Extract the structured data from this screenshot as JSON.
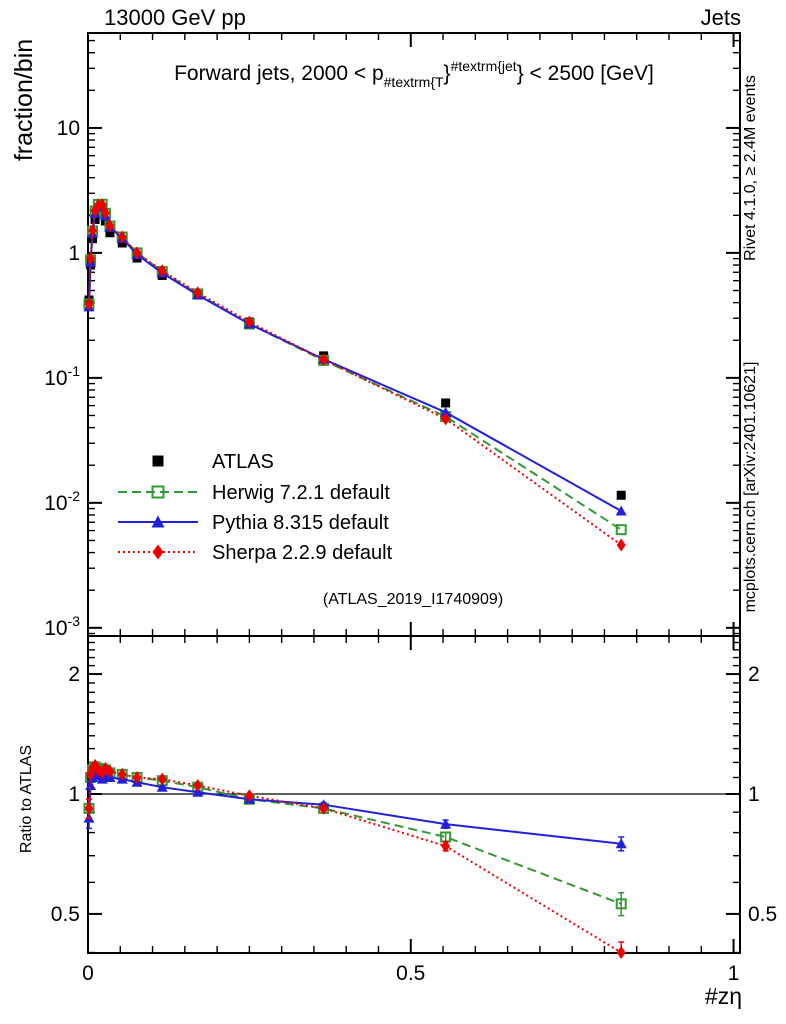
{
  "header": {
    "left": "13000 GeV pp",
    "right": "Jets"
  },
  "main_title": {
    "pre": "Forward jets, 2000 < p",
    "sub": "#textrm{T",
    "mid": "}",
    "sup": "#textrm{jet",
    "post": "} < 2500 [GeV]"
  },
  "side_captions": {
    "top": "Rivet 4.1.0, ≥ 2.4M events",
    "bottom": "mcplots.cern.ch [arXiv:2401.10621]"
  },
  "watermark": "(ATLAS_2019_I1740909)",
  "colors": {
    "atlas": "#000000",
    "herwig": "#339933",
    "pythia": "#2020dd",
    "sherpa": "#ee0000",
    "caption": "#999999",
    "watermark": "#b2b2b2"
  },
  "chart_data": {
    "type": "line",
    "title": "Forward jets, 2000 < pT^jet < 2500 [GeV]",
    "xlabel": "#zη",
    "x": [
      0.0015,
      0.004,
      0.007,
      0.011,
      0.016,
      0.022,
      0.027,
      0.034,
      0.053,
      0.076,
      0.115,
      0.17,
      0.25,
      0.365,
      0.554,
      0.826
    ],
    "series": [
      {
        "name": "ATLAS",
        "color": "#000000",
        "marker": "square-filled",
        "line": "none",
        "values": [
          0.42,
          0.8,
          1.3,
          1.85,
          2.1,
          2.15,
          1.8,
          1.45,
          1.2,
          0.91,
          0.66,
          0.46,
          0.28,
          0.15,
          0.063,
          0.0115
        ]
      },
      {
        "name": "Herwig 7.2.1 default",
        "color": "#339933",
        "marker": "square-open",
        "line": "dashed",
        "values": [
          0.39,
          0.88,
          1.5,
          2.16,
          2.44,
          2.45,
          2.07,
          1.64,
          1.34,
          1.0,
          0.71,
          0.47,
          0.27,
          0.138,
          0.049,
          0.0061
        ],
        "ratios": [
          0.92,
          1.1,
          1.15,
          1.17,
          1.16,
          1.14,
          1.15,
          1.13,
          1.12,
          1.1,
          1.08,
          1.04,
          0.97,
          0.92,
          0.78,
          0.53
        ],
        "ratio_err": [
          0.05,
          0.02,
          0.015,
          0.012,
          0.01,
          0.01,
          0.01,
          0.01,
          0.008,
          0.008,
          0.008,
          0.008,
          0.01,
          0.012,
          0.02,
          0.035
        ]
      },
      {
        "name": "Pythia 8.315 default",
        "color": "#2020dd",
        "marker": "triangle-filled",
        "line": "solid",
        "values": [
          0.37,
          0.84,
          1.43,
          2.07,
          2.33,
          2.34,
          1.98,
          1.6,
          1.31,
          0.97,
          0.69,
          0.46,
          0.27,
          0.141,
          0.053,
          0.0086
        ],
        "ratios": [
          0.87,
          1.05,
          1.1,
          1.12,
          1.11,
          1.09,
          1.1,
          1.1,
          1.09,
          1.07,
          1.04,
          1.01,
          0.97,
          0.94,
          0.84,
          0.75
        ],
        "ratio_err": [
          0.05,
          0.02,
          0.015,
          0.012,
          0.01,
          0.01,
          0.01,
          0.01,
          0.008,
          0.008,
          0.008,
          0.008,
          0.01,
          0.012,
          0.02,
          0.03
        ]
      },
      {
        "name": "Sherpa 2.2.9 default",
        "color": "#ee0000",
        "marker": "diamond-filled",
        "line": "dotted",
        "values": [
          0.39,
          0.9,
          1.51,
          2.18,
          2.42,
          2.43,
          2.09,
          1.65,
          1.34,
          1.0,
          0.72,
          0.48,
          0.28,
          0.14,
          0.047,
          0.0046
        ],
        "ratios": [
          0.92,
          1.12,
          1.16,
          1.18,
          1.15,
          1.13,
          1.16,
          1.14,
          1.12,
          1.1,
          1.09,
          1.05,
          0.99,
          0.92,
          0.74,
          0.4
        ],
        "ratio_err": [
          0.05,
          0.02,
          0.015,
          0.012,
          0.01,
          0.01,
          0.01,
          0.01,
          0.008,
          0.008,
          0.008,
          0.008,
          0.01,
          0.012,
          0.02,
          0.025
        ]
      }
    ],
    "main_axis": {
      "ylabel": "fraction/bin",
      "scale": "log",
      "range": [
        0.00086,
        57.5
      ],
      "yticks": [
        {
          "v": 10,
          "base": "10",
          "exp": ""
        },
        {
          "v": 1,
          "base": "1",
          "exp": ""
        },
        {
          "v": 0.1,
          "base": "10",
          "exp": "-1"
        },
        {
          "v": 0.01,
          "base": "10",
          "exp": "-2"
        },
        {
          "v": 0.001,
          "base": "10",
          "exp": "-3"
        }
      ]
    },
    "ratio_axis": {
      "ylabel": "Ratio to ATLAS",
      "scale": "log",
      "range": [
        0.3989,
        2.492
      ],
      "ticks": [
        {
          "v": 2,
          "label": "2"
        },
        {
          "v": 1,
          "label": "1"
        },
        {
          "v": 0.5,
          "label": "0.5"
        }
      ],
      "reference_line": 1
    },
    "x_axis": {
      "range": [
        0,
        1.01
      ],
      "ticks": [
        {
          "v": 0,
          "label": "0"
        },
        {
          "v": 0.5,
          "label": "0.5"
        },
        {
          "v": 1,
          "label": "1"
        }
      ],
      "minor_step": 0.05
    },
    "legend_position": "left-middle",
    "grid": false
  }
}
